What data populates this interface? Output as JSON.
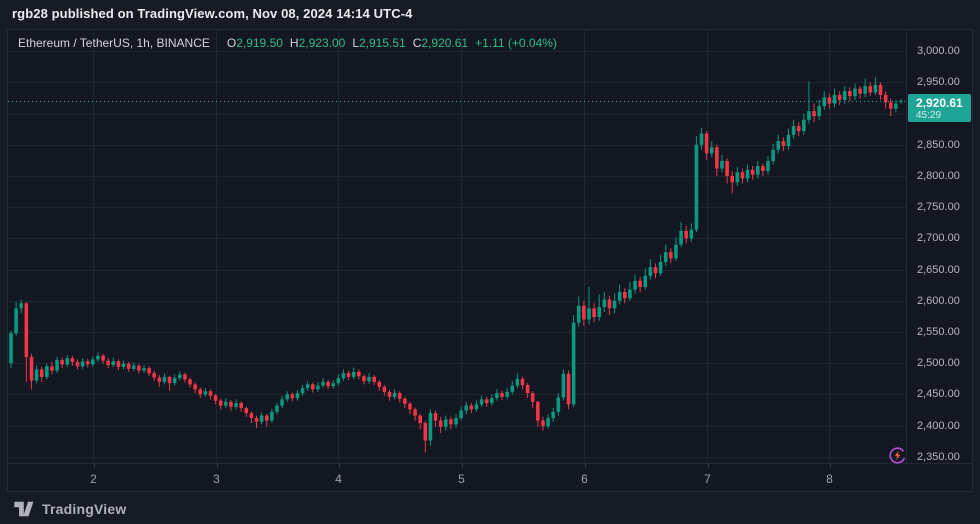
{
  "attribution": "rgb28 published on TradingView.com, Nov 08, 2024 14:14 UTC-4",
  "legend": {
    "title": "Ethereum / TetherUS, 1h, BINANCE",
    "o_label": "O",
    "o_value": "2,919.50",
    "h_label": "H",
    "h_value": "2,923.00",
    "l_label": "L",
    "l_value": "2,915.51",
    "c_label": "C",
    "c_value": "2,920.61",
    "change": "+1.11 (+0.04%)"
  },
  "price_label": {
    "price": "2,920.61",
    "countdown": "45:29"
  },
  "brand": {
    "wordmark": "TradingView"
  },
  "colors": {
    "up": "#089981",
    "down": "#f23645",
    "grid": "#1e2432",
    "price_line": "#26a69a",
    "label_bg": "#1fa595",
    "axis_text": "#b2b5be"
  },
  "chart_data": {
    "type": "candlestick",
    "symbol": "Ethereum / TetherUS",
    "interval": "1h",
    "exchange": "BINANCE",
    "last_price": 2920.61,
    "ylim": [
      2340,
      3034
    ],
    "price_ticks": [
      {
        "value": 3000,
        "label": "3,000.00"
      },
      {
        "value": 2950,
        "label": "2,950.00"
      },
      {
        "value": 2900,
        "label": "2,900.00"
      },
      {
        "value": 2850,
        "label": "2,850.00"
      },
      {
        "value": 2800,
        "label": "2,800.00"
      },
      {
        "value": 2750,
        "label": "2,750.00"
      },
      {
        "value": 2700,
        "label": "2,700.00"
      },
      {
        "value": 2650,
        "label": "2,650.00"
      },
      {
        "value": 2600,
        "label": "2,600.00"
      },
      {
        "value": 2550,
        "label": "2,550.00"
      },
      {
        "value": 2500,
        "label": "2,500.00"
      },
      {
        "value": 2450,
        "label": "2,450.00"
      },
      {
        "value": 2400,
        "label": "2,400.00"
      },
      {
        "value": 2350,
        "label": "2,350.00"
      }
    ],
    "time_ticks": [
      {
        "index": 16,
        "label": "2"
      },
      {
        "index": 40,
        "label": "3"
      },
      {
        "index": 64,
        "label": "4"
      },
      {
        "index": 88,
        "label": "5"
      },
      {
        "index": 112,
        "label": "6"
      },
      {
        "index": 136,
        "label": "7"
      },
      {
        "index": 160,
        "label": "8"
      }
    ],
    "candles": [
      [
        2500,
        2552,
        2492,
        2548
      ],
      [
        2548,
        2598,
        2544,
        2588
      ],
      [
        2588,
        2602,
        2580,
        2596
      ],
      [
        2596,
        2598,
        2470,
        2510
      ],
      [
        2510,
        2515,
        2458,
        2472
      ],
      [
        2472,
        2496,
        2468,
        2490
      ],
      [
        2490,
        2494,
        2470,
        2478
      ],
      [
        2478,
        2500,
        2474,
        2495
      ],
      [
        2495,
        2502,
        2482,
        2488
      ],
      [
        2488,
        2510,
        2484,
        2505
      ],
      [
        2505,
        2509,
        2492,
        2498
      ],
      [
        2498,
        2513,
        2494,
        2508
      ],
      [
        2508,
        2512,
        2496,
        2502
      ],
      [
        2502,
        2506,
        2490,
        2495
      ],
      [
        2495,
        2508,
        2491,
        2503
      ],
      [
        2503,
        2507,
        2493,
        2498
      ],
      [
        2498,
        2511,
        2495,
        2506
      ],
      [
        2506,
        2517,
        2502,
        2512
      ],
      [
        2512,
        2515,
        2499,
        2504
      ],
      [
        2504,
        2508,
        2492,
        2497
      ],
      [
        2497,
        2509,
        2494,
        2503
      ],
      [
        2503,
        2506,
        2489,
        2494
      ],
      [
        2494,
        2504,
        2490,
        2499
      ],
      [
        2499,
        2502,
        2486,
        2491
      ],
      [
        2491,
        2501,
        2487,
        2496
      ],
      [
        2496,
        2499,
        2483,
        2488
      ],
      [
        2488,
        2497,
        2484,
        2492
      ],
      [
        2492,
        2495,
        2479,
        2484
      ],
      [
        2484,
        2488,
        2472,
        2477
      ],
      [
        2477,
        2481,
        2462,
        2470
      ],
      [
        2470,
        2483,
        2466,
        2478
      ],
      [
        2478,
        2480,
        2456,
        2468
      ],
      [
        2468,
        2482,
        2464,
        2476
      ],
      [
        2476,
        2487,
        2472,
        2482
      ],
      [
        2482,
        2485,
        2469,
        2474
      ],
      [
        2474,
        2477,
        2461,
        2466
      ],
      [
        2466,
        2469,
        2452,
        2458
      ],
      [
        2458,
        2461,
        2444,
        2450
      ],
      [
        2450,
        2460,
        2446,
        2455
      ],
      [
        2455,
        2458,
        2442,
        2448
      ],
      [
        2448,
        2451,
        2434,
        2440
      ],
      [
        2440,
        2443,
        2426,
        2432
      ],
      [
        2432,
        2444,
        2428,
        2438
      ],
      [
        2438,
        2441,
        2424,
        2430
      ],
      [
        2430,
        2442,
        2426,
        2436
      ],
      [
        2436,
        2439,
        2422,
        2428
      ],
      [
        2428,
        2431,
        2414,
        2420
      ],
      [
        2420,
        2423,
        2404,
        2412
      ],
      [
        2412,
        2416,
        2396,
        2406
      ],
      [
        2406,
        2421,
        2402,
        2416
      ],
      [
        2416,
        2419,
        2398,
        2408
      ],
      [
        2408,
        2427,
        2405,
        2422
      ],
      [
        2422,
        2437,
        2418,
        2432
      ],
      [
        2432,
        2447,
        2428,
        2442
      ],
      [
        2442,
        2455,
        2438,
        2450
      ],
      [
        2450,
        2453,
        2439,
        2444
      ],
      [
        2444,
        2457,
        2440,
        2452
      ],
      [
        2452,
        2465,
        2448,
        2460
      ],
      [
        2460,
        2471,
        2456,
        2466
      ],
      [
        2466,
        2469,
        2453,
        2458
      ],
      [
        2458,
        2470,
        2454,
        2464
      ],
      [
        2464,
        2476,
        2460,
        2470
      ],
      [
        2470,
        2473,
        2458,
        2463
      ],
      [
        2463,
        2473,
        2459,
        2468
      ],
      [
        2468,
        2482,
        2464,
        2476
      ],
      [
        2476,
        2490,
        2472,
        2484
      ],
      [
        2484,
        2488,
        2473,
        2478
      ],
      [
        2478,
        2493,
        2474,
        2486
      ],
      [
        2486,
        2490,
        2474,
        2479
      ],
      [
        2479,
        2482,
        2466,
        2471
      ],
      [
        2471,
        2484,
        2467,
        2478
      ],
      [
        2478,
        2481,
        2465,
        2470
      ],
      [
        2470,
        2473,
        2456,
        2462
      ],
      [
        2462,
        2465,
        2448,
        2454
      ],
      [
        2454,
        2457,
        2440,
        2446
      ],
      [
        2446,
        2458,
        2442,
        2452
      ],
      [
        2452,
        2455,
        2437,
        2443
      ],
      [
        2443,
        2446,
        2428,
        2435
      ],
      [
        2435,
        2438,
        2419,
        2426
      ],
      [
        2426,
        2429,
        2408,
        2416
      ],
      [
        2416,
        2419,
        2394,
        2404
      ],
      [
        2404,
        2407,
        2357,
        2376
      ],
      [
        2376,
        2426,
        2368,
        2420
      ],
      [
        2420,
        2424,
        2398,
        2408
      ],
      [
        2408,
        2414,
        2388,
        2398
      ],
      [
        2398,
        2416,
        2392,
        2410
      ],
      [
        2410,
        2414,
        2394,
        2402
      ],
      [
        2402,
        2418,
        2396,
        2412
      ],
      [
        2412,
        2430,
        2408,
        2424
      ],
      [
        2424,
        2438,
        2418,
        2432
      ],
      [
        2432,
        2436,
        2420,
        2426
      ],
      [
        2426,
        2440,
        2422,
        2434
      ],
      [
        2434,
        2448,
        2430,
        2442
      ],
      [
        2442,
        2446,
        2430,
        2436
      ],
      [
        2436,
        2450,
        2432,
        2444
      ],
      [
        2444,
        2458,
        2440,
        2452
      ],
      [
        2452,
        2456,
        2441,
        2446
      ],
      [
        2446,
        2460,
        2442,
        2454
      ],
      [
        2454,
        2472,
        2450,
        2464
      ],
      [
        2464,
        2483,
        2460,
        2475
      ],
      [
        2475,
        2478,
        2458,
        2465
      ],
      [
        2465,
        2468,
        2444,
        2452
      ],
      [
        2452,
        2455,
        2428,
        2438
      ],
      [
        2438,
        2440,
        2398,
        2408
      ],
      [
        2408,
        2414,
        2392,
        2399
      ],
      [
        2399,
        2418,
        2395,
        2412
      ],
      [
        2412,
        2428,
        2406,
        2422
      ],
      [
        2422,
        2452,
        2416,
        2445
      ],
      [
        2445,
        2490,
        2440,
        2483
      ],
      [
        2483,
        2488,
        2426,
        2434
      ],
      [
        2434,
        2577,
        2430,
        2565
      ],
      [
        2565,
        2607,
        2558,
        2592
      ],
      [
        2592,
        2600,
        2560,
        2570
      ],
      [
        2570,
        2622,
        2562,
        2588
      ],
      [
        2588,
        2596,
        2566,
        2574
      ],
      [
        2574,
        2610,
        2568,
        2590
      ],
      [
        2590,
        2614,
        2582,
        2602
      ],
      [
        2602,
        2608,
        2578,
        2588
      ],
      [
        2588,
        2612,
        2580,
        2600
      ],
      [
        2600,
        2626,
        2594,
        2614
      ],
      [
        2614,
        2620,
        2596,
        2604
      ],
      [
        2604,
        2630,
        2600,
        2618
      ],
      [
        2618,
        2642,
        2612,
        2632
      ],
      [
        2632,
        2638,
        2614,
        2622
      ],
      [
        2622,
        2652,
        2618,
        2640
      ],
      [
        2640,
        2666,
        2634,
        2654
      ],
      [
        2654,
        2660,
        2636,
        2644
      ],
      [
        2644,
        2674,
        2640,
        2662
      ],
      [
        2662,
        2690,
        2656,
        2678
      ],
      [
        2678,
        2684,
        2660,
        2668
      ],
      [
        2668,
        2702,
        2664,
        2690
      ],
      [
        2690,
        2726,
        2686,
        2712
      ],
      [
        2712,
        2720,
        2692,
        2700
      ],
      [
        2700,
        2724,
        2694,
        2714
      ],
      [
        2714,
        2864,
        2710,
        2850
      ],
      [
        2850,
        2877,
        2842,
        2868
      ],
      [
        2868,
        2872,
        2826,
        2836
      ],
      [
        2836,
        2856,
        2830,
        2846
      ],
      [
        2846,
        2850,
        2800,
        2812
      ],
      [
        2812,
        2834,
        2806,
        2824
      ],
      [
        2824,
        2828,
        2788,
        2800
      ],
      [
        2800,
        2808,
        2772,
        2790
      ],
      [
        2790,
        2814,
        2784,
        2806
      ],
      [
        2806,
        2812,
        2788,
        2796
      ],
      [
        2796,
        2818,
        2790,
        2810
      ],
      [
        2810,
        2816,
        2794,
        2802
      ],
      [
        2802,
        2824,
        2796,
        2816
      ],
      [
        2816,
        2820,
        2800,
        2808
      ],
      [
        2808,
        2832,
        2802,
        2824
      ],
      [
        2824,
        2852,
        2818,
        2842
      ],
      [
        2842,
        2866,
        2836,
        2856
      ],
      [
        2856,
        2862,
        2840,
        2848
      ],
      [
        2848,
        2876,
        2842,
        2866
      ],
      [
        2866,
        2890,
        2860,
        2880
      ],
      [
        2880,
        2886,
        2864,
        2872
      ],
      [
        2872,
        2900,
        2866,
        2890
      ],
      [
        2890,
        2952,
        2884,
        2904
      ],
      [
        2904,
        2916,
        2886,
        2896
      ],
      [
        2896,
        2922,
        2890,
        2912
      ],
      [
        2912,
        2936,
        2906,
        2926
      ],
      [
        2926,
        2932,
        2908,
        2916
      ],
      [
        2916,
        2940,
        2910,
        2930
      ],
      [
        2930,
        2936,
        2914,
        2922
      ],
      [
        2922,
        2944,
        2916,
        2936
      ],
      [
        2936,
        2942,
        2920,
        2928
      ],
      [
        2928,
        2948,
        2922,
        2940
      ],
      [
        2940,
        2944,
        2924,
        2932
      ],
      [
        2932,
        2956,
        2926,
        2944
      ],
      [
        2944,
        2950,
        2928,
        2934
      ],
      [
        2934,
        2958,
        2930,
        2946
      ],
      [
        2946,
        2950,
        2922,
        2930
      ],
      [
        2930,
        2936,
        2908,
        2918
      ],
      [
        2918,
        2924,
        2896,
        2908
      ],
      [
        2908,
        2922,
        2902,
        2916
      ],
      [
        2919.5,
        2923,
        2915.51,
        2920.61
      ]
    ]
  }
}
